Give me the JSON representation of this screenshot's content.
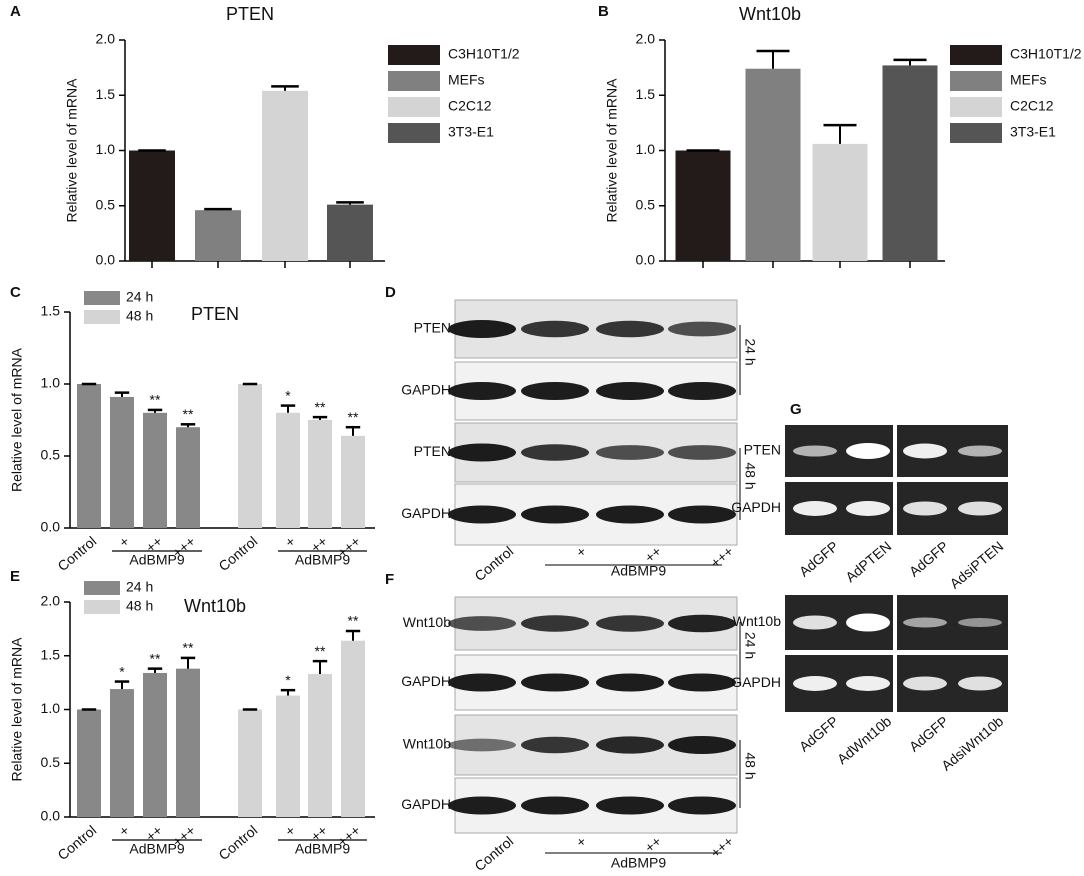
{
  "chart_data": [
    {
      "type": "bar",
      "panel": "A",
      "title": "PTEN",
      "ylabel": "Relative level of mRNA",
      "categories": [
        null
      ],
      "ylim": [
        0,
        2
      ],
      "yticks": [
        {
          "value": 0,
          "label": "0.0"
        },
        0.5,
        {
          "value": 1,
          "label": "1.0"
        },
        1.5,
        {
          "value": 2,
          "label": "2.0"
        }
      ],
      "legend": "right",
      "series": [
        {
          "name": "C3H10T1/2",
          "color": "#231a1a",
          "values": [
            1.0
          ],
          "errors": [
            0
          ]
        },
        {
          "name": "MEFs",
          "color": "#808080",
          "values": [
            0.46
          ],
          "errors": [
            0.01
          ]
        },
        {
          "name": "C2C12",
          "color": "#d4d4d4",
          "values": [
            1.54
          ],
          "errors": [
            0.04
          ]
        },
        {
          "name": "3T3-E1",
          "color": "#555555",
          "values": [
            0.51
          ],
          "errors": [
            0.02
          ]
        }
      ]
    },
    {
      "type": "bar",
      "panel": "B",
      "title": "Wnt10b",
      "ylabel": "Relative level of  mRNA",
      "categories": [
        null
      ],
      "ylim": [
        0,
        2
      ],
      "yticks": [
        {
          "value": 0,
          "label": "0.0"
        },
        0.5,
        {
          "value": 1,
          "label": "1.0"
        },
        1.5,
        {
          "value": 2,
          "label": "2.0"
        }
      ],
      "legend": "right",
      "series": [
        {
          "name": "C3H10T1/2",
          "color": "#231a1a",
          "values": [
            1.0
          ],
          "errors": [
            0
          ]
        },
        {
          "name": "MEFs",
          "color": "#808080",
          "values": [
            1.74
          ],
          "errors": [
            0.16
          ]
        },
        {
          "name": "C2C12",
          "color": "#d4d4d4",
          "values": [
            1.06
          ],
          "errors": [
            0.17
          ]
        },
        {
          "name": "3T3-E1",
          "color": "#555555",
          "values": [
            1.77
          ],
          "errors": [
            0.05
          ]
        }
      ]
    },
    {
      "type": "bar",
      "panel": "C",
      "title": "PTEN",
      "ylabel": "Relative level of mRNA",
      "categories": [
        "Control",
        "+",
        "++",
        "+++"
      ],
      "group_label": "AdBMP9",
      "ylim": [
        0,
        1.5
      ],
      "yticks": [
        {
          "value": 0,
          "label": "0.0"
        },
        0.5,
        {
          "value": 1,
          "label": "1.0"
        },
        1.5
      ],
      "legend": "upper left",
      "series": [
        {
          "name": "24 h",
          "color": "#888888",
          "values": [
            1.0,
            0.91,
            0.8,
            0.7
          ],
          "errors": [
            0,
            0.03,
            0.02,
            0.02
          ],
          "significance": [
            null,
            null,
            "**",
            "**"
          ]
        },
        {
          "name": "48 h",
          "color": "#d4d4d4",
          "values": [
            1.0,
            0.8,
            0.75,
            0.64
          ],
          "errors": [
            0,
            0.05,
            0.02,
            0.06
          ],
          "significance": [
            null,
            "*",
            "**",
            "**"
          ]
        }
      ]
    },
    {
      "type": "bar",
      "panel": "E",
      "title": "Wnt10b",
      "ylabel": "Relative level of mRNA",
      "categories": [
        "Control",
        "+",
        "++",
        "+++"
      ],
      "group_label": "AdBMP9",
      "ylim": [
        0,
        2
      ],
      "yticks": [
        {
          "value": 0,
          "label": "0.0"
        },
        0.5,
        {
          "value": 1,
          "label": "1.0"
        },
        1.5,
        {
          "value": 2,
          "label": "2.0"
        }
      ],
      "legend": "upper left",
      "series": [
        {
          "name": "24 h",
          "color": "#888888",
          "values": [
            1.0,
            1.19,
            1.34,
            1.38
          ],
          "errors": [
            0,
            0.07,
            0.04,
            0.1
          ],
          "significance": [
            null,
            "*",
            "**",
            "**"
          ]
        },
        {
          "name": "48 h",
          "color": "#d4d4d4",
          "values": [
            1.0,
            1.13,
            1.33,
            1.64
          ],
          "errors": [
            0,
            0.05,
            0.12,
            0.09
          ],
          "significance": [
            null,
            "*",
            "**",
            "**"
          ]
        }
      ]
    }
  ],
  "blots": [
    {
      "panel": "D",
      "rows": [
        "PTEN",
        "GAPDH",
        "PTEN",
        "GAPDH"
      ],
      "times": [
        "24 h",
        "48 h"
      ],
      "lanes": [
        "Control",
        "+",
        "++",
        "+++"
      ],
      "treatment": "AdBMP9"
    },
    {
      "panel": "F",
      "rows": [
        "Wnt10b",
        "GAPDH",
        "Wnt10b",
        "GAPDH"
      ],
      "times": [
        "24 h",
        "48 h"
      ],
      "lanes": [
        "Control",
        "+",
        "++",
        "+++"
      ],
      "treatment": "AdBMP9"
    }
  ],
  "gels": {
    "panel": "G",
    "blocks": [
      {
        "rows": [
          "PTEN",
          "GAPDH"
        ],
        "lanes": [
          "AdGFP",
          "AdPTEN",
          "AdGFP",
          "AdsiPTEN"
        ]
      },
      {
        "rows": [
          "Wnt10b",
          "GAPDH"
        ],
        "lanes": [
          "AdGFP",
          "AdWnt10b",
          "AdGFP",
          "AdsiWnt10b"
        ]
      }
    ]
  }
}
